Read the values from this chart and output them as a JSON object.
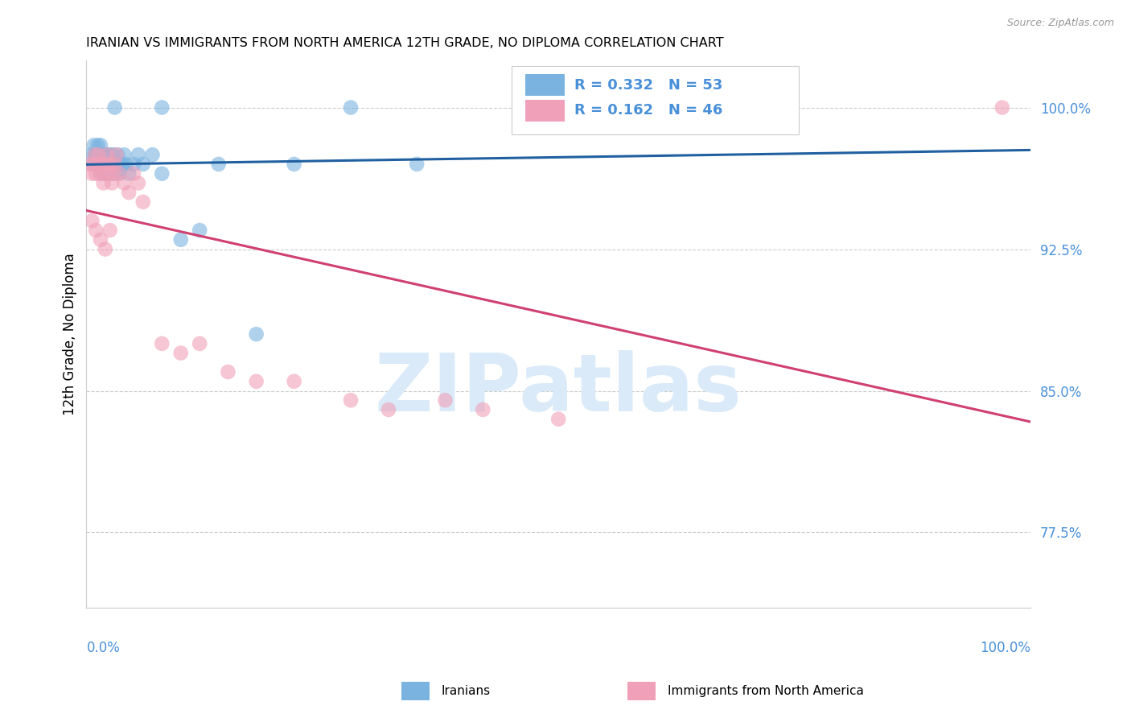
{
  "title": "IRANIAN VS IMMIGRANTS FROM NORTH AMERICA 12TH GRADE, NO DIPLOMA CORRELATION CHART",
  "source": "Source: ZipAtlas.com",
  "ylabel": "12th Grade, No Diploma",
  "legend_label_blue": "Iranians",
  "legend_label_pink": "Immigrants from North America",
  "R_blue": 0.332,
  "N_blue": 53,
  "R_pink": 0.162,
  "N_pink": 46,
  "color_blue": "#7ab3e0",
  "color_pink": "#f0a0b8",
  "color_blue_line": "#2060a0",
  "color_pink_line": "#d04070",
  "color_axis_label": "#4a90d9",
  "watermark_color": "#daeaf8",
  "background_color": "#ffffff",
  "xlim": [
    0.0,
    1.0
  ],
  "ylim": [
    0.735,
    1.025
  ],
  "ytick_vals": [
    0.775,
    0.85,
    0.925,
    1.0
  ],
  "ytick_labels": [
    "77.5%",
    "85.0%",
    "92.5%",
    "100.0%"
  ]
}
